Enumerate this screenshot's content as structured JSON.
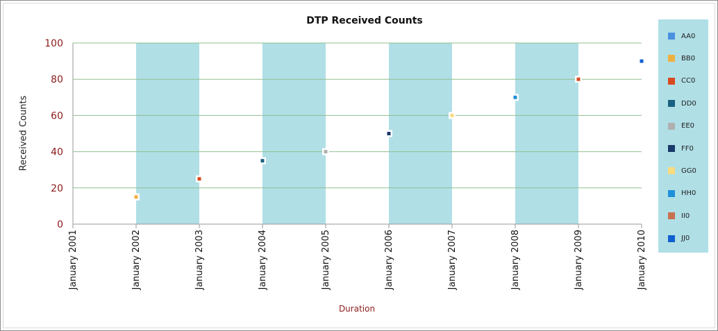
{
  "chart_data": {
    "type": "scatter",
    "title": "DTP Received Counts",
    "xlabel": "Duration",
    "ylabel": "Received Counts",
    "categories": [
      "January 2001",
      "January 2002",
      "January 2003",
      "January 2004",
      "January 2005",
      "January 2006",
      "January 2007",
      "January 2008",
      "January 2009",
      "January 2010"
    ],
    "yticks": [
      0,
      20,
      40,
      60,
      80,
      100
    ],
    "ylim": [
      0,
      100
    ],
    "grid": true,
    "alternate_bands_color": "#b0dfe6",
    "legend_position": "right",
    "series": [
      {
        "name": "AA0",
        "color": "#4a8fe0",
        "points": []
      },
      {
        "name": "BB0",
        "color": "#f0b040",
        "points": [
          {
            "x": "January 2002",
            "y": 15
          }
        ]
      },
      {
        "name": "CC0",
        "color": "#d84a20",
        "points": [
          {
            "x": "January 2003",
            "y": 25
          },
          {
            "x": "January 2009",
            "y": 80
          }
        ]
      },
      {
        "name": "DD0",
        "color": "#1a6080",
        "points": [
          {
            "x": "January 2004",
            "y": 35
          }
        ]
      },
      {
        "name": "EE0",
        "color": "#b0b0b0",
        "points": [
          {
            "x": "January 2005",
            "y": 40
          }
        ]
      },
      {
        "name": "FF0",
        "color": "#1a3a6a",
        "points": [
          {
            "x": "January 2006",
            "y": 50
          }
        ]
      },
      {
        "name": "GG0",
        "color": "#f8dc80",
        "points": [
          {
            "x": "January 2007",
            "y": 60
          }
        ]
      },
      {
        "name": "HH0",
        "color": "#2090d8",
        "points": [
          {
            "x": "January 2008",
            "y": 70
          }
        ]
      },
      {
        "name": "II0",
        "color": "#c87050",
        "points": []
      },
      {
        "name": "JJ0",
        "color": "#1060d0",
        "points": [
          {
            "x": "January 2010",
            "y": 90
          }
        ]
      }
    ]
  }
}
